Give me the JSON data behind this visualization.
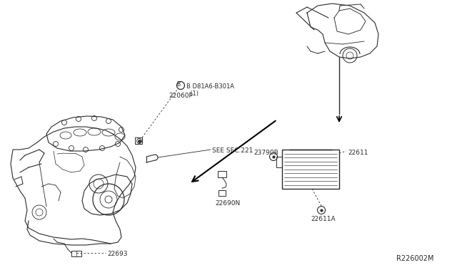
{
  "bg_color": "#ffffff",
  "lc": "#2a2a2a",
  "fig_w": 6.4,
  "fig_h": 3.72,
  "labels": {
    "bolt_ref": "B D81A6-B301A\n  (1)",
    "p22060P": "22060P",
    "see_sec": "SEE SEC.221",
    "p22690N": "22690N",
    "p22693": "22693",
    "p23790B": "23790B",
    "p22611": "22611",
    "p22611A": "22611A",
    "ref": "R226002M"
  }
}
